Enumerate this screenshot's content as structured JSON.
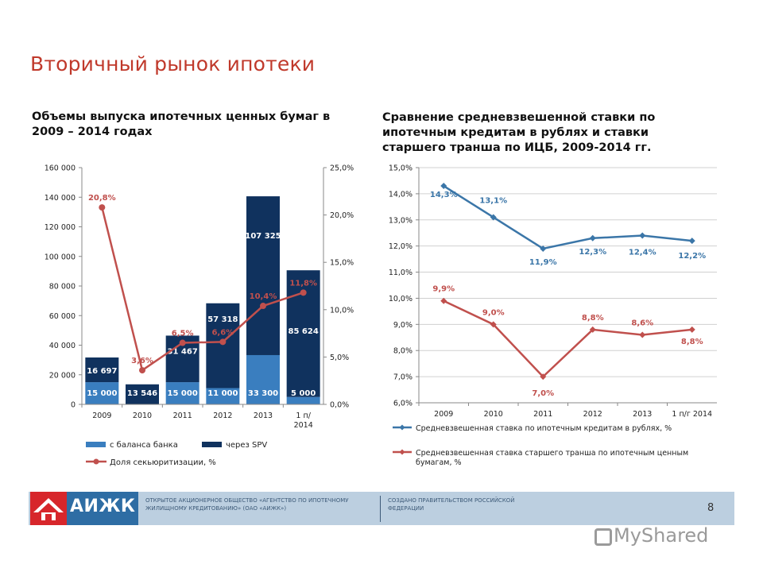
{
  "slide_title": "Вторичный рынок ипотеки",
  "left_heading": "Объемы выпуска ипотечных ценных бумаг в 2009 – 2014 годах",
  "right_heading": "Сравнение средневзвешенной ставки по ипотечным кредитам в рублях и ставки старшего транша по ИЦБ, 2009-2014 гг.",
  "colors": {
    "title": "#c0392b",
    "bank_bar": "#3a7ebf",
    "spv_bar": "#10325e",
    "share_line": "#c0504d",
    "rate_line": "#3b76a8",
    "tranche_line": "#c0504d",
    "footer_bg": "#bccfe0",
    "logo_red": "#d7262b",
    "logo_blue": "#2e6da4"
  },
  "chart_data": [
    {
      "type": "bar",
      "stacked": true,
      "categories": [
        "2009",
        "2010",
        "2011",
        "2012",
        "2013",
        "1 п/г 2014"
      ],
      "series": [
        {
          "name": "с баланса банка",
          "values": [
            15000,
            0,
            15000,
            11000,
            33300,
            5000
          ],
          "labels": [
            "15 000",
            "",
            "15 000",
            "11 000",
            "33 300",
            "5 000"
          ]
        },
        {
          "name": "через SPV",
          "values": [
            16697,
            13546,
            31467,
            57318,
            107325,
            85624
          ],
          "labels": [
            "16 697",
            "13 546",
            "31 467",
            "57 318",
            "107 325",
            "85 624"
          ]
        }
      ],
      "line_series": {
        "name": "Доля секьюритизации, %",
        "axis": "right",
        "values": [
          20.8,
          3.6,
          6.5,
          6.6,
          10.4,
          11.8
        ],
        "labels": [
          "20,8%",
          "3,6%",
          "6,5%",
          "6,6%",
          "10,4%",
          "11,8%"
        ]
      },
      "y_left": {
        "min": 0,
        "max": 160000,
        "ticks": [
          "0",
          "20 000",
          "40 000",
          "60 000",
          "80 000",
          "100 000",
          "120 000",
          "140 000",
          "160 000"
        ]
      },
      "y_right": {
        "min": 0,
        "max": 25,
        "ticks": [
          "0,0%",
          "5,0%",
          "10,0%",
          "15,0%",
          "20,0%",
          "25,0%"
        ]
      },
      "legend": [
        "с баланса банка",
        "через SPV",
        "Доля секьюритизации, %"
      ],
      "legend_position": "bottom"
    },
    {
      "type": "line",
      "categories": [
        "2009",
        "2010",
        "2011",
        "2012",
        "2013",
        "1 п/г 2014"
      ],
      "series": [
        {
          "name": "Средневзвешенная ставка по ипотечным кредитам в рублях, %",
          "values": [
            14.3,
            13.1,
            11.9,
            12.3,
            12.4,
            12.2
          ],
          "labels": [
            "14,3%",
            "13,1%",
            "11,9%",
            "12,3%",
            "12,4%",
            "12,2%"
          ]
        },
        {
          "name": "Средневзвешенная ставка старшего транша по ипотечным ценным бумагам, %",
          "values": [
            9.9,
            9.0,
            7.0,
            8.8,
            8.6,
            8.8
          ],
          "labels": [
            "9,9%",
            "9,0%",
            "7,0%",
            "8,8%",
            "8,6%",
            "8,8%"
          ]
        }
      ],
      "y": {
        "min": 6,
        "max": 15,
        "ticks": [
          "6,0%",
          "7,0%",
          "8,0%",
          "9,0%",
          "10,0%",
          "11,0%",
          "12,0%",
          "13,0%",
          "14,0%",
          "15,0%"
        ]
      },
      "grid": true,
      "legend_position": "bottom"
    }
  ],
  "footer": {
    "logo_text": "АИЖК",
    "org": "ОТКРЫТОЕ АКЦИОНЕРНОЕ ОБЩЕСТВО «АГЕНТСТВО ПО ИПОТЕЧНОМУ ЖИЛИЩНОМУ КРЕДИТОВАНИЮ» (ОАО «АИЖК»)",
    "gov": "СОЗДАНО ПРАВИТЕЛЬСТВОМ РОССИЙСКОЙ ФЕДЕРАЦИИ",
    "page": "8"
  },
  "watermark": "MyShared"
}
